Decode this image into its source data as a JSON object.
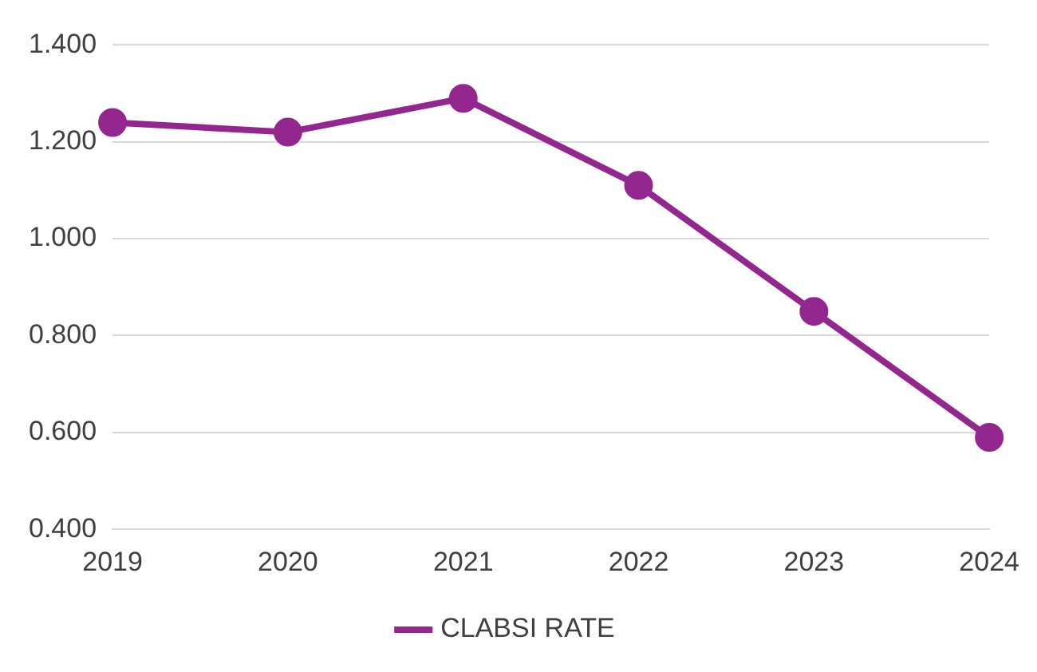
{
  "chart_data": {
    "type": "line",
    "categories": [
      "2019",
      "2020",
      "2021",
      "2022",
      "2023",
      "2024"
    ],
    "series": [
      {
        "name": "CLABSI RATE",
        "color": "#93278f",
        "values": [
          1.24,
          1.22,
          1.29,
          1.11,
          0.85,
          0.59
        ]
      }
    ],
    "ylim": [
      0.4,
      1.4
    ],
    "yticks": [
      {
        "value": 0.4,
        "label": "0.400"
      },
      {
        "value": 0.6,
        "label": "0.600"
      },
      {
        "value": 0.8,
        "label": "0.800"
      },
      {
        "value": 1.0,
        "label": "1.000"
      },
      {
        "value": 1.2,
        "label": "1.200"
      },
      {
        "value": 1.4,
        "label": "1.400"
      }
    ],
    "grid": "y",
    "legend": "bottom",
    "marker": "circle",
    "line_style": "solid"
  }
}
